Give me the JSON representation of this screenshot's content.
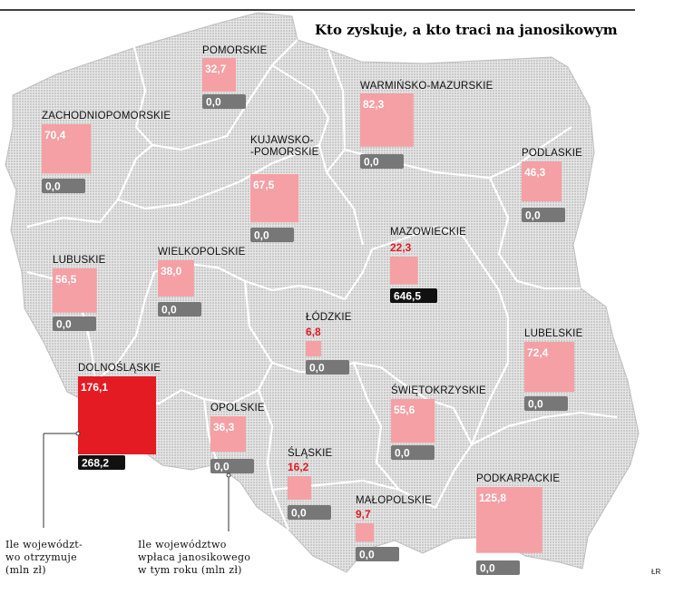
{
  "title": "Kto zyskuje, a kto traci na janosikowym",
  "credit": "ŁR",
  "colors": {
    "receive_box": "#f5a0a4",
    "receive_box_max": "#e41b23",
    "receive_label_red": "#e41b23",
    "pay_box_zero": "#777777",
    "pay_box_nonzero": "#111111",
    "map_fill": "#d4d4d4",
    "border": "#ffffff"
  },
  "legend": {
    "receive": [
      "Ile województ-",
      "wo otrzymuje",
      "(mln zł)"
    ],
    "pay": [
      "Ile województwo",
      "wpłaca janosikowego",
      "w tym roku (mln zł)"
    ]
  },
  "regions": [
    {
      "name": "POMORSKIE",
      "receives": "32,7",
      "pays": "0,0",
      "value": 32.7,
      "label_style": "inside"
    },
    {
      "name": "WARMIŃSKO-MAZURSKIE",
      "receives": "82,3",
      "pays": "0,0",
      "value": 82.3,
      "label_style": "inside"
    },
    {
      "name": "ZACHODNIOPOMORSKIE",
      "receives": "70,4",
      "pays": "0,0",
      "value": 70.4,
      "label_style": "inside"
    },
    {
      "name": "KUJAWSKO-\n-POMORSKIE",
      "receives": "67,5",
      "pays": "0,0",
      "value": 67.5,
      "label_style": "inside"
    },
    {
      "name": "PODLASKIE",
      "receives": "46,3",
      "pays": "0,0",
      "value": 46.3,
      "label_style": "inside"
    },
    {
      "name": "MAZOWIECKIE",
      "receives": "22,3",
      "pays": "646,5",
      "value": 22.3,
      "label_style": "above"
    },
    {
      "name": "LUBUSKIE",
      "receives": "56,5",
      "pays": "0,0",
      "value": 56.5,
      "label_style": "inside"
    },
    {
      "name": "WIELKOPOLSKIE",
      "receives": "38,0",
      "pays": "0,0",
      "value": 38.0,
      "label_style": "inside"
    },
    {
      "name": "ŁÓDZKIE",
      "receives": "6,8",
      "pays": "0,0",
      "value": 6.8,
      "label_style": "above"
    },
    {
      "name": "LUBELSKIE",
      "receives": "72,4",
      "pays": "0,0",
      "value": 72.4,
      "label_style": "inside"
    },
    {
      "name": "DOLNOŚLĄSKIE",
      "receives": "176,1",
      "pays": "268,2",
      "value": 176.1,
      "label_style": "inside"
    },
    {
      "name": "OPOLSKIE",
      "receives": "36,3",
      "pays": "0,0",
      "value": 36.3,
      "label_style": "inside"
    },
    {
      "name": "ŚWIĘTOKRZYSKIE",
      "receives": "55,6",
      "pays": "0,0",
      "value": 55.6,
      "label_style": "inside"
    },
    {
      "name": "ŚLĄSKIE",
      "receives": "16,2",
      "pays": "0,0",
      "value": 16.2,
      "label_style": "above"
    },
    {
      "name": "MAŁOPOLSKIE",
      "receives": "9,7",
      "pays": "0,0",
      "value": 9.7,
      "label_style": "above"
    },
    {
      "name": "PODKARPACKIE",
      "receives": "125,8",
      "pays": "0,0",
      "value": 125.8,
      "label_style": "inside"
    }
  ]
}
